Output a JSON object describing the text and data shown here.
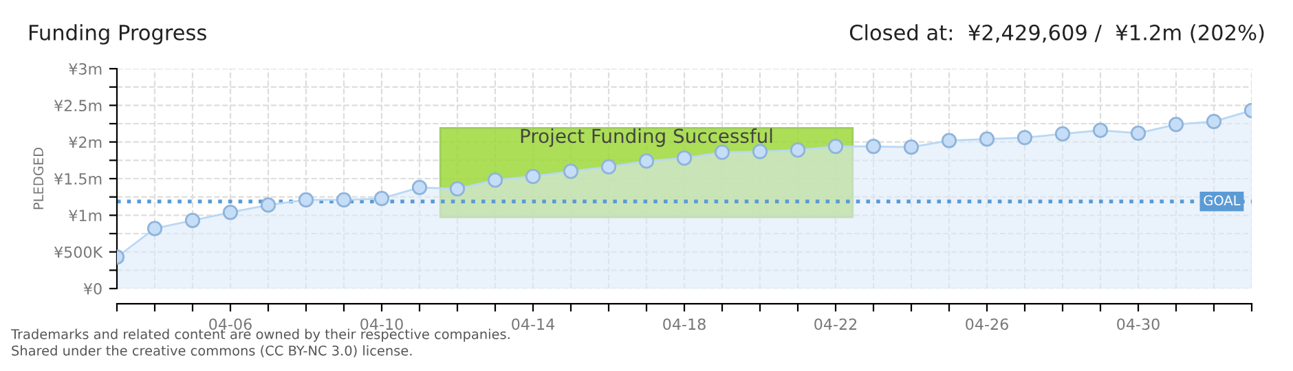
{
  "chart_data": {
    "type": "area",
    "title": "Funding Progress",
    "subtitle": "Closed at:  ¥2,429,609 /  ¥1.2m (202%)",
    "ylabel": "PLEDGED",
    "categories": [
      null,
      null,
      null,
      "04-06",
      null,
      null,
      null,
      "04-10",
      null,
      null,
      null,
      "04-14",
      null,
      null,
      null,
      "04-18",
      null,
      null,
      null,
      "04-22",
      null,
      null,
      null,
      "04-26",
      null,
      null,
      null,
      "04-30",
      null,
      null,
      null
    ],
    "series": [
      {
        "color": "#b8d8f5",
        "values": [
          430000,
          820000,
          930000,
          1040000,
          1140000,
          1210000,
          1210000,
          1230000,
          1380000,
          1360000,
          1480000,
          1530000,
          1600000,
          1660000,
          1740000,
          1780000,
          1860000,
          1870000,
          1890000,
          1940000,
          1940000,
          1930000,
          2020000,
          2040000,
          2060000,
          2110000,
          2160000,
          2120000,
          2240000,
          2280000,
          2430000
        ]
      }
    ],
    "marker": "circle",
    "grid": true,
    "ylim": [
      0,
      3000000
    ],
    "yticks": [
      {
        "value": 0,
        "label": "¥0"
      },
      {
        "value": 250000,
        "label": null
      },
      {
        "value": 500000,
        "label": "¥500K"
      },
      {
        "value": 750000,
        "label": null
      },
      {
        "value": 1000000,
        "label": "¥1m"
      },
      {
        "value": 1250000,
        "label": null
      },
      {
        "value": 1500000,
        "label": "¥1.5m"
      },
      {
        "value": 1750000,
        "label": null
      },
      {
        "value": 2000000,
        "label": "¥2m"
      },
      {
        "value": 2250000,
        "label": null
      },
      {
        "value": 2500000,
        "label": "¥2.5m"
      },
      {
        "value": 2750000,
        "label": null
      },
      {
        "value": 3000000,
        "label": "¥3m"
      }
    ],
    "ref_lines": [
      {
        "axis": "y",
        "value": 1187500,
        "label": "GOAL",
        "color": "#5b9bd5",
        "line_style": "dotted"
      }
    ],
    "annotations": [
      "Project Funding Successful",
      "Trademarks and related content are owned by their respective companies.",
      "Shared under the creative commons (CC BY-NC 3.0) license."
    ]
  }
}
